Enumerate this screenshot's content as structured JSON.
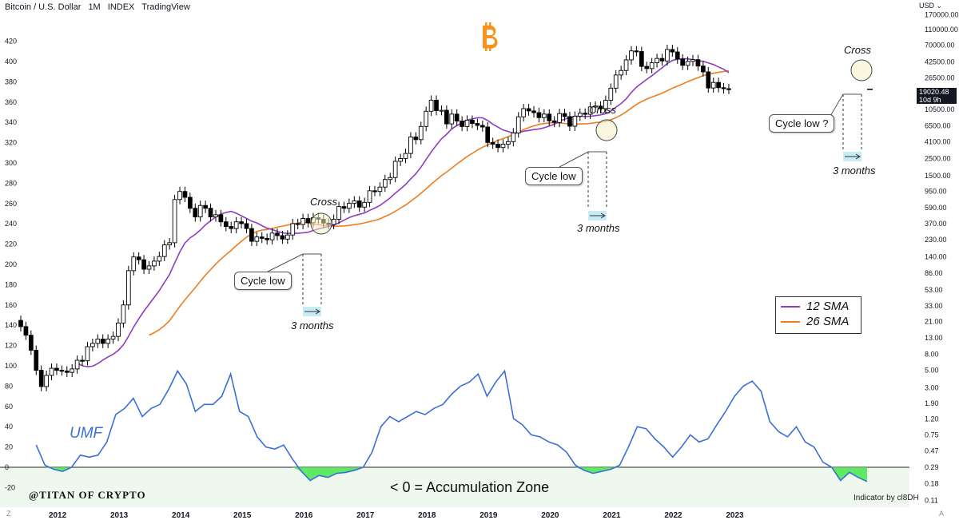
{
  "header": {
    "symbol": "Bitcoin / U.S. Dollar",
    "interval": "1M",
    "source": "INDEX",
    "platform": "TradingView",
    "currency": "USD"
  },
  "last_price": {
    "value": "19020.48",
    "countdown": "10d 9h"
  },
  "brand_icon": "bitcoin-logo",
  "colors": {
    "sma12": "#8e3cc0",
    "sma26": "#f07d1c",
    "umf": "#3a6fd8",
    "zone_fill": "#46e64a",
    "zone_bg": "#eef8ee"
  },
  "annotations": {
    "cross": "Cross",
    "cycle_low": "Cycle low",
    "cycle_low_q": "Cycle low ?",
    "three_months": "3 months"
  },
  "legend": {
    "sma12": "12 SMA",
    "sma26": "26 SMA"
  },
  "umf_label": "UMF",
  "watermark": "@TITAN OF CRYPTO",
  "zone_label": "< 0 = Accumulation Zone",
  "credit": "Indicator by cl8DH",
  "corner_left": "Z",
  "corner_right": "A",
  "chart_data": {
    "type": "line",
    "x_ticks": [
      "2012",
      "2013",
      "2014",
      "2015",
      "2016",
      "2017",
      "2018",
      "2019",
      "2020",
      "2021",
      "2022",
      "2023"
    ],
    "left_ticks": [
      "420",
      "400",
      "380",
      "360",
      "340",
      "320",
      "300",
      "280",
      "260",
      "240",
      "220",
      "200",
      "180",
      "160",
      "140",
      "120",
      "100",
      "80",
      "60",
      "40",
      "20",
      "0",
      "-20"
    ],
    "right_ticks": [
      "USD",
      "170000.00",
      "110000.00",
      "70000.00",
      "42500.00",
      "26500.00",
      "16500.00",
      "10500.00",
      "6500.00",
      "4100.00",
      "2500.00",
      "1500.00",
      "950.00",
      "590.00",
      "370.00",
      "230.00",
      "140.00",
      "86.00",
      "53.00",
      "33.00",
      "21.00",
      "13.00",
      "8.00",
      "5.00",
      "3.00",
      "1.90",
      "1.20",
      "0.75",
      "0.47",
      "0.29",
      "0.18",
      "0.11"
    ],
    "price_log_scale": true,
    "price_candles_monthly": {
      "start": "2011-06",
      "close": [
        18,
        14,
        9,
        5.0,
        3.1,
        4.3,
        5.3,
        5.0,
        4.9,
        4.7,
        5.2,
        6.7,
        6.6,
        10,
        11,
        12.5,
        11,
        12.5,
        13.5,
        20,
        34,
        93,
        139,
        128,
        97,
        107,
        123,
        141,
        198,
        211,
        750,
        950,
        800,
        580,
        450,
        630,
        580,
        450,
        480,
        390,
        340,
        320,
        390,
        370,
        320,
        220,
        250,
        240,
        230,
        280,
        260,
        235,
        265,
        370,
        360,
        430,
        380,
        440,
        420,
        375,
        360,
        420,
        610,
        580,
        670,
        720,
        600,
        690,
        970,
        950,
        1080,
        1350,
        1430,
        2300,
        2500,
        2900,
        4700,
        4350,
        6400,
        10000,
        13850,
        10200,
        10300,
        6900,
        9200,
        7500,
        6400,
        7700,
        7000,
        6600,
        6300,
        4000,
        3800,
        3450,
        3800,
        4100,
        5300,
        8500,
        10800,
        10100,
        9600,
        8300,
        9200,
        7550,
        7200,
        9350,
        8550,
        6450,
        8650,
        9450,
        9150,
        11350,
        11650,
        10800,
        13800,
        19700,
        29000,
        33100,
        45200,
        58800,
        57700,
        37300,
        35000,
        41500,
        47100,
        43800,
        61300,
        57000,
        46300,
        38500,
        43200,
        45500,
        37700,
        31800,
        19800,
        23300,
        20000,
        19400,
        19020
      ],
      "note": "approximate monthly closes read from the chart (USD)"
    },
    "series": [
      {
        "name": "UMF",
        "start": "2011-09",
        "step": "quarter",
        "values": [
          22,
          2,
          -2,
          -4,
          0,
          12,
          10,
          12,
          25,
          52,
          58,
          68,
          50,
          58,
          62,
          77,
          95,
          82,
          55,
          62,
          62,
          70,
          92,
          55,
          50,
          30,
          20,
          18,
          22,
          8,
          -4,
          -13,
          -8,
          -10,
          -6,
          -5,
          -3,
          0,
          15,
          40,
          50,
          45,
          50,
          55,
          52,
          58,
          62,
          72,
          80,
          84,
          92,
          70,
          84,
          95,
          48,
          42,
          32,
          30,
          25,
          22,
          15,
          2,
          -3,
          -6,
          -4,
          -2,
          2,
          20,
          40,
          38,
          28,
          20,
          10,
          20,
          32,
          25,
          28,
          42,
          55,
          70,
          80,
          85,
          75,
          45,
          35,
          30,
          40,
          25,
          20,
          5,
          0,
          -13,
          -5,
          -10,
          -14
        ]
      },
      {
        "name": "12 SMA",
        "type": "price-overlay"
      },
      {
        "name": "26 SMA",
        "type": "price-overlay"
      }
    ]
  }
}
